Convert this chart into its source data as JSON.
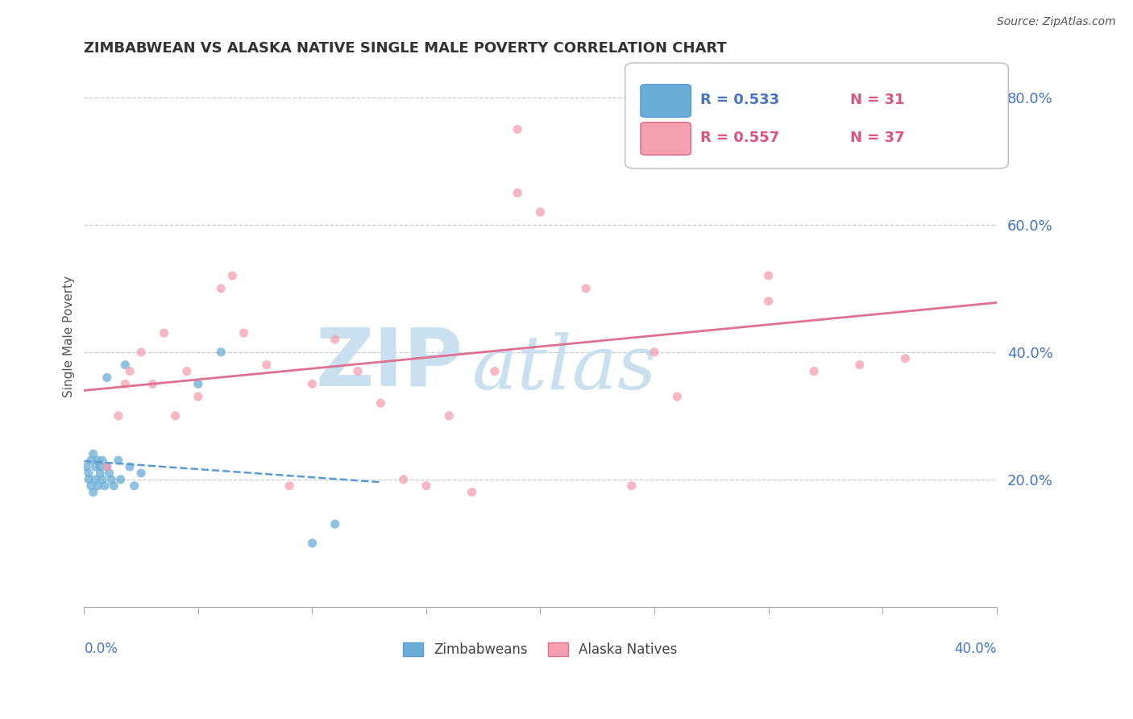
{
  "title": "ZIMBABWEAN VS ALASKA NATIVE SINGLE MALE POVERTY CORRELATION CHART",
  "source": "Source: ZipAtlas.com",
  "ylabel": "Single Male Poverty",
  "xlim": [
    0.0,
    0.4
  ],
  "ylim": [
    0.0,
    0.85
  ],
  "legend_r1": "R = 0.533",
  "legend_n1": "N = 31",
  "legend_r2": "R = 0.557",
  "legend_n2": "N = 37",
  "zimbabwean_color": "#6aaed6",
  "alaska_color": "#f4a0b0",
  "zimbabwean_line_color": "#5b9bd5",
  "alaska_line_color": "#e07090",
  "zim_x": [
    0.001,
    0.002,
    0.002,
    0.003,
    0.003,
    0.004,
    0.004,
    0.005,
    0.005,
    0.006,
    0.006,
    0.007,
    0.007,
    0.008,
    0.008,
    0.009,
    0.01,
    0.01,
    0.011,
    0.012,
    0.013,
    0.015,
    0.016,
    0.018,
    0.02,
    0.022,
    0.025,
    0.05,
    0.06,
    0.1,
    0.11
  ],
  "zim_y": [
    0.22,
    0.2,
    0.21,
    0.19,
    0.23,
    0.18,
    0.24,
    0.22,
    0.2,
    0.19,
    0.23,
    0.21,
    0.22,
    0.2,
    0.23,
    0.19,
    0.22,
    0.36,
    0.21,
    0.2,
    0.19,
    0.23,
    0.2,
    0.38,
    0.22,
    0.19,
    0.21,
    0.35,
    0.4,
    0.1,
    0.13
  ],
  "alaska_x": [
    0.01,
    0.015,
    0.018,
    0.02,
    0.025,
    0.03,
    0.035,
    0.04,
    0.045,
    0.05,
    0.06,
    0.065,
    0.07,
    0.08,
    0.09,
    0.1,
    0.11,
    0.12,
    0.13,
    0.14,
    0.15,
    0.16,
    0.17,
    0.18,
    0.19,
    0.2,
    0.22,
    0.24,
    0.26,
    0.28,
    0.3,
    0.32,
    0.34,
    0.36,
    0.3,
    0.25,
    0.19
  ],
  "alaska_y": [
    0.22,
    0.3,
    0.35,
    0.37,
    0.4,
    0.35,
    0.43,
    0.3,
    0.37,
    0.33,
    0.5,
    0.52,
    0.43,
    0.38,
    0.19,
    0.35,
    0.42,
    0.37,
    0.32,
    0.2,
    0.19,
    0.3,
    0.18,
    0.37,
    0.65,
    0.62,
    0.5,
    0.19,
    0.33,
    0.7,
    0.48,
    0.37,
    0.38,
    0.39,
    0.52,
    0.4,
    0.75
  ],
  "ytick_vals": [
    0.2,
    0.4,
    0.6,
    0.8
  ],
  "ytick_labels": [
    "20.0%",
    "40.0%",
    "60.0%",
    "80.0%"
  ],
  "title_color": "#333333",
  "tick_color": "#4472c4",
  "source_color": "#555555",
  "ylabel_color": "#555555",
  "watermark_color": "#c8e0f0",
  "grid_color": "#cccccc",
  "spine_color": "#aaaaaa"
}
